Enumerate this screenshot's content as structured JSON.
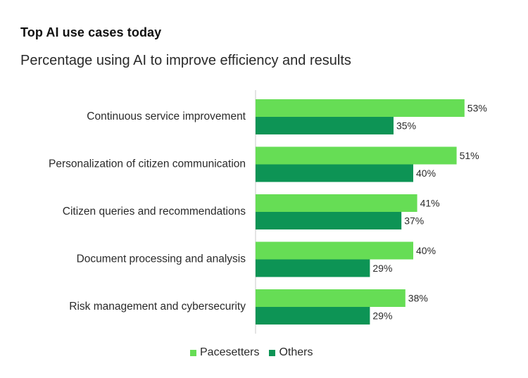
{
  "chart_data": {
    "type": "bar",
    "orientation": "horizontal",
    "title": "Top AI use cases today",
    "subtitle": "Percentage using AI to improve efficiency and results",
    "categories": [
      "Continuous service improvement",
      "Personalization of citizen communication",
      "Citizen queries and recommendations",
      "Document processing and analysis",
      "Risk management and cybersecurity"
    ],
    "series": [
      {
        "name": "Pacesetters",
        "color": "#66dd55",
        "values": [
          53,
          51,
          41,
          40,
          38
        ]
      },
      {
        "name": "Others",
        "color": "#0d9455",
        "values": [
          35,
          40,
          37,
          29,
          29
        ]
      }
    ],
    "value_suffix": "%",
    "xlim": [
      0,
      60
    ],
    "legend_position": "bottom"
  }
}
